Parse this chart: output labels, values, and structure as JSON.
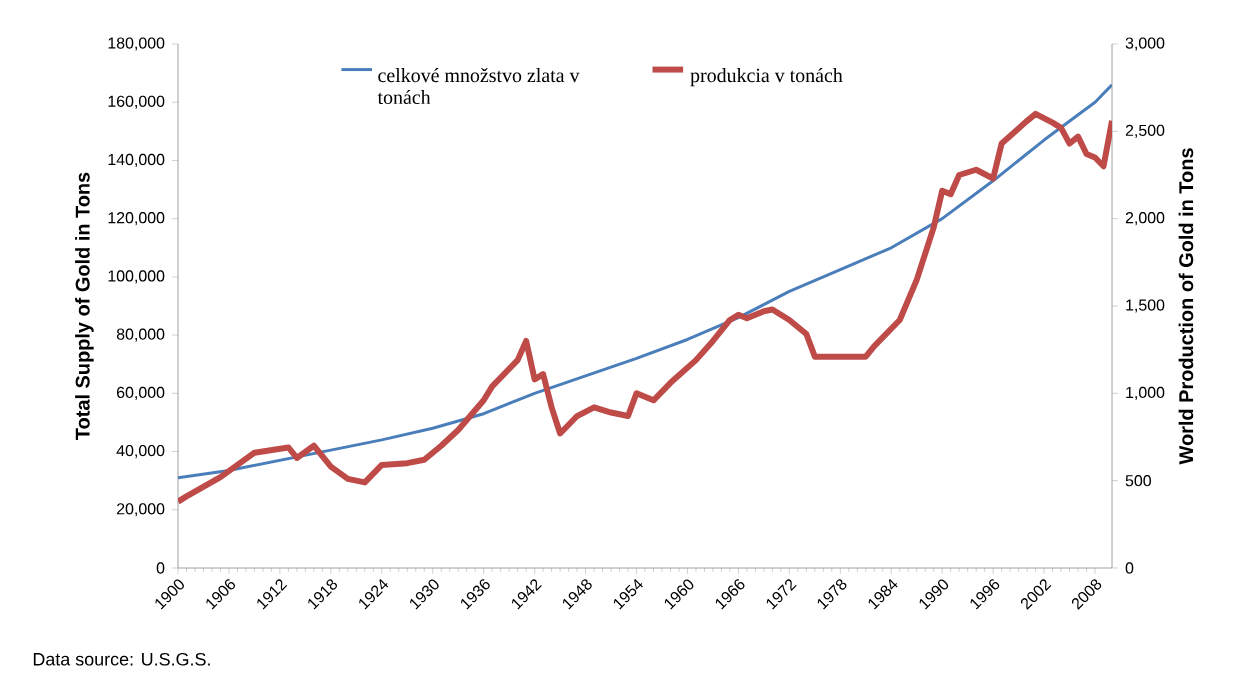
{
  "chart_data": {
    "type": "line",
    "ylabel": "Total Supply of Gold in Tons",
    "y2label": "World Production of Gold in Tons",
    "annotations": [
      "Data source: U.S.G.S."
    ],
    "legend": "top",
    "xlim": [
      1900,
      2010
    ],
    "xticks": [
      1900,
      1906,
      1912,
      1918,
      1924,
      1930,
      1936,
      1942,
      1948,
      1954,
      1960,
      1966,
      1972,
      1978,
      1984,
      1990,
      1996,
      2002,
      2008
    ],
    "ylim": [
      0,
      180000
    ],
    "yticks": [
      {
        "value": 0,
        "label": "0"
      },
      {
        "value": 20000,
        "label": "20,000"
      },
      {
        "value": 40000,
        "label": "40,000"
      },
      {
        "value": 60000,
        "label": "60,000"
      },
      {
        "value": 80000,
        "label": "80,000"
      },
      {
        "value": 100000,
        "label": "100,000"
      },
      {
        "value": 120000,
        "label": "120,000"
      },
      {
        "value": 140000,
        "label": "140,000"
      },
      {
        "value": 160000,
        "label": "160,000"
      },
      {
        "value": 180000,
        "label": "180,000"
      }
    ],
    "y2lim": [
      0,
      3000
    ],
    "y2ticks": [
      0,
      500,
      {
        "value": 1000,
        "label": "1,000"
      },
      {
        "value": 1500,
        "label": "1,500"
      },
      {
        "value": 2000,
        "label": "2,000"
      },
      {
        "value": 2500,
        "label": "2,500"
      },
      {
        "value": 3000,
        "label": "3,000"
      }
    ],
    "series": [
      {
        "name": "celkové množstvo zlata v tonách",
        "color": "#4a7ebb",
        "x": [
          1900,
          1906,
          1912,
          1918,
          1924,
          1930,
          1936,
          1942,
          1948,
          1954,
          1960,
          1966,
          1972,
          1978,
          1984,
          1990,
          1996,
          2002,
          2008,
          2010
        ],
        "values": [
          31000,
          33500,
          37000,
          40500,
          44000,
          48000,
          53000,
          60000,
          66000,
          72000,
          78500,
          86000,
          95000,
          102500,
          110000,
          120000,
          133000,
          147000,
          160000,
          166000
        ]
      },
      {
        "name": "produkcia v tonách",
        "color": "#be4b48",
        "axis": "y2",
        "x": [
          1900,
          1901,
          1905,
          1909,
          1913,
          1914,
          1916,
          1918,
          1920,
          1922,
          1924,
          1927,
          1929,
          1931,
          1933,
          1936,
          1937,
          1940,
          1941,
          1942,
          1943,
          1944,
          1945,
          1947,
          1949,
          1951,
          1953,
          1954,
          1956,
          1958,
          1961,
          1963,
          1965,
          1966,
          1967,
          1969,
          1970,
          1972,
          1974,
          1975,
          1977,
          1981,
          1982,
          1985,
          1987,
          1989,
          1990,
          1991,
          1992,
          1994,
          1996,
          1997,
          2000,
          2001,
          2003,
          2004,
          2005,
          2006,
          2007,
          2008,
          2009,
          2010
        ],
        "values": [
          380,
          410,
          520,
          660,
          690,
          630,
          700,
          580,
          510,
          490,
          590,
          600,
          620,
          700,
          790,
          960,
          1040,
          1190,
          1300,
          1080,
          1110,
          920,
          770,
          870,
          920,
          890,
          870,
          1000,
          960,
          1060,
          1190,
          1300,
          1420,
          1450,
          1430,
          1470,
          1480,
          1420,
          1340,
          1210,
          1210,
          1210,
          1270,
          1420,
          1650,
          1950,
          2160,
          2140,
          2250,
          2280,
          2230,
          2430,
          2560,
          2600,
          2550,
          2520,
          2430,
          2470,
          2370,
          2350,
          2300,
          2560
        ]
      }
    ]
  }
}
